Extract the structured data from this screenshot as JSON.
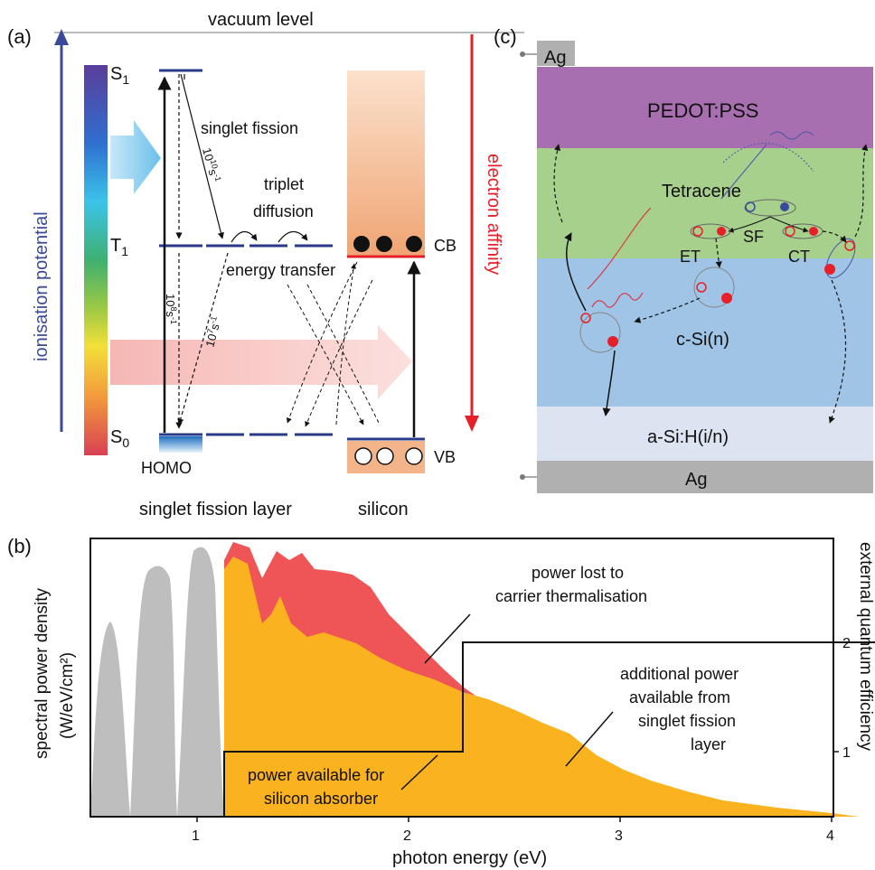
{
  "colors": {
    "ip_blue": "#3a4a9a",
    "ea_red": "#e6202a",
    "sfl_level": "#2a3a8a",
    "cb_red": "#e6202a",
    "pedot": "#a86fb0",
    "tetracene": "#a8d08d",
    "csi": "#9fc4e6",
    "asi": "#dde4f1",
    "ag": "#b0b0b0",
    "sun_gray": "#bebebe",
    "yellow": "#fbb21f",
    "red_loss": "#ef5456",
    "blue_extra": "#4b55a6"
  },
  "panel_a": {
    "label": "(a)",
    "vacuum": "vacuum level",
    "ionisation": "ionisation potential",
    "affinity": "electron affinity",
    "s1_base": "S",
    "s1_sub": "1",
    "t1_base": "T",
    "t1_sub": "1",
    "s0_base": "S",
    "s0_sub": "0",
    "homo": "HOMO",
    "singlet_fission": "singlet fission",
    "rate_fission_a": "10",
    "rate_fission_b": "10",
    "rate_fission_c": "s",
    "rate_fission_d": "-1",
    "triplet": "triplet",
    "diffusion": "diffusion",
    "energy_transfer": "energy transfer",
    "rate_8_a": "10",
    "rate_8_b": "8",
    "rate_8_c": "s",
    "rate_8_d": "-1",
    "rate_7_a": "10",
    "rate_7_b": "7",
    "rate_7_c": "s",
    "rate_7_d": "-1",
    "cb": "CB",
    "vb": "VB",
    "sfl_caption": "singlet fission layer",
    "si_caption": "silicon"
  },
  "panel_c": {
    "label": "(c)",
    "ag_top": "Ag",
    "pedot": "PEDOT:PSS",
    "tetracene": "Tetracene",
    "sf": "SF",
    "et": "ET",
    "ct": "CT",
    "csi": "c-Si(n)",
    "asi": "a-Si:H(i/n)",
    "ag_bottom": "Ag"
  },
  "panel_b": {
    "label": "(b)",
    "ylabel_line1": "spectral power density",
    "ylabel_line2": "(W/eV/cm²)",
    "xlabel": "photon energy (eV)",
    "y2label": "external quantum efficiency",
    "ann_thermal_1": "power lost to",
    "ann_thermal_2": "carrier thermalisation",
    "ann_extra_1": "additional power",
    "ann_extra_2": "available from",
    "ann_extra_3": "singlet fission",
    "ann_extra_4": "layer",
    "ann_silicon_1": "power available for",
    "ann_silicon_2": "silicon absorber"
  },
  "chart_data": {
    "type": "area",
    "xlabel": "photon energy (eV)",
    "ylabel": "spectral power density (W/eV/cm²)",
    "y2label": "external quantum efficiency",
    "xlim": [
      0.5,
      4.0
    ],
    "x_ticks": [
      1,
      2,
      3,
      4
    ],
    "y2_ticks": [
      1,
      2
    ],
    "series": [
      {
        "name": "power available for silicon absorber",
        "color": "#fbb21f"
      },
      {
        "name": "power lost to carrier thermalisation",
        "color": "#ef5456"
      },
      {
        "name": "additional power available from singlet fission layer",
        "color": "#4b55a6"
      }
    ],
    "eqe_step": {
      "x": [
        1.12,
        2.24,
        4.0
      ],
      "values": [
        1,
        2,
        2
      ]
    },
    "spectrum_envelope": {
      "x": [
        0.5,
        0.6,
        0.75,
        0.85,
        1.0,
        1.12,
        1.2,
        1.4,
        1.6,
        1.8,
        2.0,
        2.24,
        2.5,
        2.8,
        3.0,
        3.2,
        3.5,
        3.8,
        4.0
      ],
      "y": [
        0.05,
        0.55,
        0.85,
        0.9,
        0.95,
        0.97,
        1.0,
        0.96,
        0.94,
        0.9,
        0.82,
        0.72,
        0.58,
        0.46,
        0.38,
        0.28,
        0.17,
        0.06,
        0.0
      ]
    }
  }
}
